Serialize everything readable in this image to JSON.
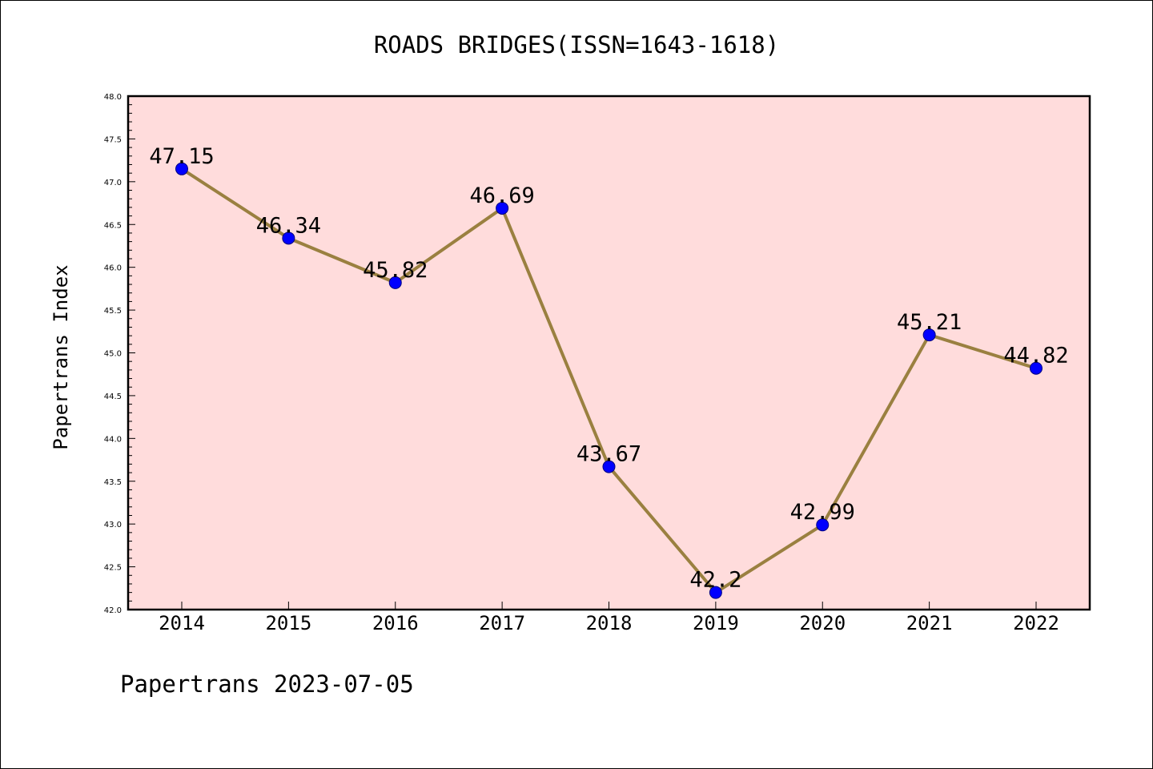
{
  "chart_data": {
    "type": "line",
    "title": "ROADS BRIDGES(ISSN=1643-1618)",
    "xlabel": "",
    "ylabel": "Papertrans Index",
    "categories": [
      "2014",
      "2015",
      "2016",
      "2017",
      "2018",
      "2019",
      "2020",
      "2021",
      "2022"
    ],
    "values": [
      47.15,
      46.34,
      45.82,
      46.69,
      43.67,
      42.2,
      42.99,
      45.21,
      44.82
    ],
    "data_labels": [
      "47.15",
      "46.34",
      "45.82",
      "46.69",
      "43.67",
      "42.2",
      "42.99",
      "45.21",
      "44.82"
    ],
    "ylim": [
      42.0,
      48.0
    ],
    "yticks": [
      "42.0",
      "42.5",
      "43.0",
      "43.5",
      "44.0",
      "44.5",
      "45.0",
      "45.5",
      "46.0",
      "46.5",
      "47.0",
      "47.5",
      "48.0"
    ],
    "grid": false,
    "legend": "none",
    "colors": {
      "plot_background": "#ffdcdc",
      "line": "#9a8040",
      "marker_fill": "#0000ff",
      "marker_edge": "#000080"
    }
  },
  "footer": {
    "credit": "Papertrans 2023-07-05"
  }
}
